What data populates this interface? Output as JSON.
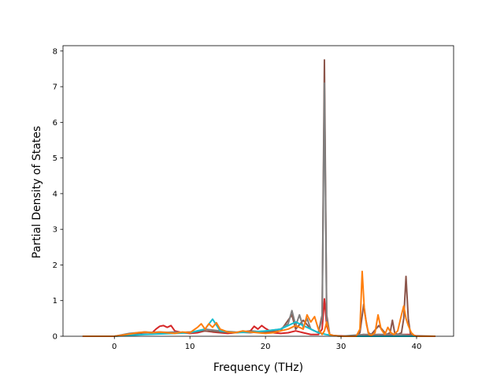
{
  "chart_data": {
    "type": "line",
    "title": "",
    "xlabel": "Frequency (THz)",
    "ylabel": "Partial Density of States",
    "xlim": [
      -6.8,
      44.9
    ],
    "ylim": [
      0,
      8.15
    ],
    "xticks": [
      0,
      10,
      20,
      30,
      40
    ],
    "yticks": [
      0,
      1,
      2,
      3,
      4,
      5,
      6,
      7,
      8
    ],
    "grid": false,
    "legend": "none",
    "series": [
      {
        "color": "#d62728",
        "x": [
          -4.2,
          0,
          1,
          2,
          3,
          4,
          5,
          5.5,
          6,
          6.5,
          7,
          7.5,
          8,
          9,
          10,
          11,
          12,
          13,
          14,
          15,
          16,
          17,
          18,
          18.5,
          19,
          19.5,
          20,
          21,
          22,
          23,
          24,
          25,
          26,
          27,
          27.5,
          27.8,
          28.1,
          28.5,
          29,
          30,
          31,
          32,
          33,
          34,
          35,
          36,
          37,
          38,
          39,
          40,
          42.5
        ],
        "y": [
          0,
          0,
          0.02,
          0.05,
          0.08,
          0.12,
          0.1,
          0.2,
          0.28,
          0.3,
          0.25,
          0.3,
          0.15,
          0.1,
          0.08,
          0.1,
          0.15,
          0.12,
          0.1,
          0.08,
          0.1,
          0.12,
          0.15,
          0.28,
          0.2,
          0.3,
          0.22,
          0.1,
          0.08,
          0.1,
          0.15,
          0.1,
          0.05,
          0.05,
          0.2,
          1.05,
          0.3,
          0.05,
          0.02,
          0.01,
          0,
          0,
          0.05,
          0.02,
          0.05,
          0.02,
          0.05,
          0.05,
          0.05,
          0,
          0
        ]
      },
      {
        "color": "#8c564b",
        "x": [
          -4.2,
          0,
          2,
          4,
          6,
          8,
          10,
          12,
          14,
          16,
          18,
          20,
          22,
          23.5,
          24,
          25,
          26,
          27,
          27.5,
          27.8,
          28.1,
          28.5,
          29,
          30,
          32,
          32.5,
          33,
          33.3,
          33.6,
          34,
          35,
          36,
          36.5,
          36.8,
          37.1,
          37.5,
          38,
          38.3,
          38.6,
          38.9,
          39.2,
          40,
          42.5
        ],
        "y": [
          0,
          0,
          0.05,
          0.1,
          0.12,
          0.1,
          0.12,
          0.15,
          0.12,
          0.1,
          0.15,
          0.12,
          0.15,
          0.6,
          0.2,
          0.45,
          0.2,
          0.1,
          0.6,
          7.75,
          0.6,
          0.05,
          0.02,
          0,
          0,
          0.1,
          0.9,
          0.45,
          0.1,
          0.05,
          0.3,
          0.05,
          0.1,
          0.45,
          0.1,
          0.05,
          0.1,
          0.5,
          1.68,
          0.5,
          0.05,
          0.01,
          0
        ]
      },
      {
        "color": "#7f7f7f",
        "x": [
          -4.2,
          0,
          2,
          4,
          6,
          8,
          10,
          12,
          14,
          16,
          18,
          20,
          22,
          23,
          23.5,
          24,
          24.5,
          25,
          25.5,
          26,
          27,
          27.5,
          27.8,
          28.1,
          28.5,
          29,
          30,
          33,
          35,
          38,
          40,
          42.5
        ],
        "y": [
          0,
          0,
          0.08,
          0.12,
          0.1,
          0.12,
          0.1,
          0.2,
          0.15,
          0.12,
          0.1,
          0.15,
          0.2,
          0.35,
          0.72,
          0.3,
          0.6,
          0.25,
          0.5,
          0.2,
          0.1,
          0.5,
          7.1,
          0.5,
          0.05,
          0.02,
          0,
          0.05,
          0.05,
          0.05,
          0,
          0
        ]
      },
      {
        "color": "#17becf",
        "x": [
          -4.2,
          0,
          4,
          8,
          10,
          12,
          13,
          14,
          16,
          18,
          20,
          22,
          23,
          24,
          25,
          26,
          27,
          28,
          29,
          30,
          40,
          42.5
        ],
        "y": [
          0,
          0,
          0.05,
          0.08,
          0.1,
          0.2,
          0.48,
          0.15,
          0.1,
          0.12,
          0.15,
          0.2,
          0.3,
          0.4,
          0.3,
          0.2,
          0.1,
          0.05,
          0.02,
          0,
          0,
          0
        ]
      },
      {
        "color": "#ff7f0e",
        "x": [
          -4.2,
          0,
          1,
          2,
          3,
          4,
          5,
          6,
          7,
          8,
          9,
          10,
          11,
          11.5,
          12,
          12.5,
          13,
          13.5,
          14,
          15,
          16,
          17,
          18,
          19,
          20,
          21,
          22,
          23,
          24,
          25,
          25.5,
          26,
          26.5,
          27,
          27.5,
          27.8,
          28.1,
          28.5,
          29,
          30,
          32,
          32.5,
          32.8,
          33.1,
          33.4,
          33.7,
          34,
          34.5,
          34.9,
          35.3,
          35.8,
          36.2,
          36.6,
          37,
          37.5,
          38,
          38.3,
          38.6,
          38.9,
          39.3,
          39.7,
          40,
          42.5
        ],
        "y": [
          0,
          0,
          0.03,
          0.06,
          0.1,
          0.12,
          0.1,
          0.12,
          0.1,
          0.08,
          0.12,
          0.1,
          0.25,
          0.35,
          0.2,
          0.35,
          0.25,
          0.38,
          0.2,
          0.12,
          0.1,
          0.15,
          0.12,
          0.1,
          0.08,
          0.1,
          0.15,
          0.2,
          0.3,
          0.2,
          0.6,
          0.4,
          0.55,
          0.2,
          0.05,
          0.15,
          0.4,
          0.05,
          0.02,
          0,
          0,
          0.2,
          1.82,
          0.7,
          0.3,
          0.05,
          0.02,
          0.1,
          0.6,
          0.2,
          0.05,
          0.25,
          0.1,
          0.05,
          0.15,
          0.6,
          0.85,
          0.5,
          0.3,
          0.1,
          0.02,
          0,
          0
        ]
      }
    ]
  }
}
